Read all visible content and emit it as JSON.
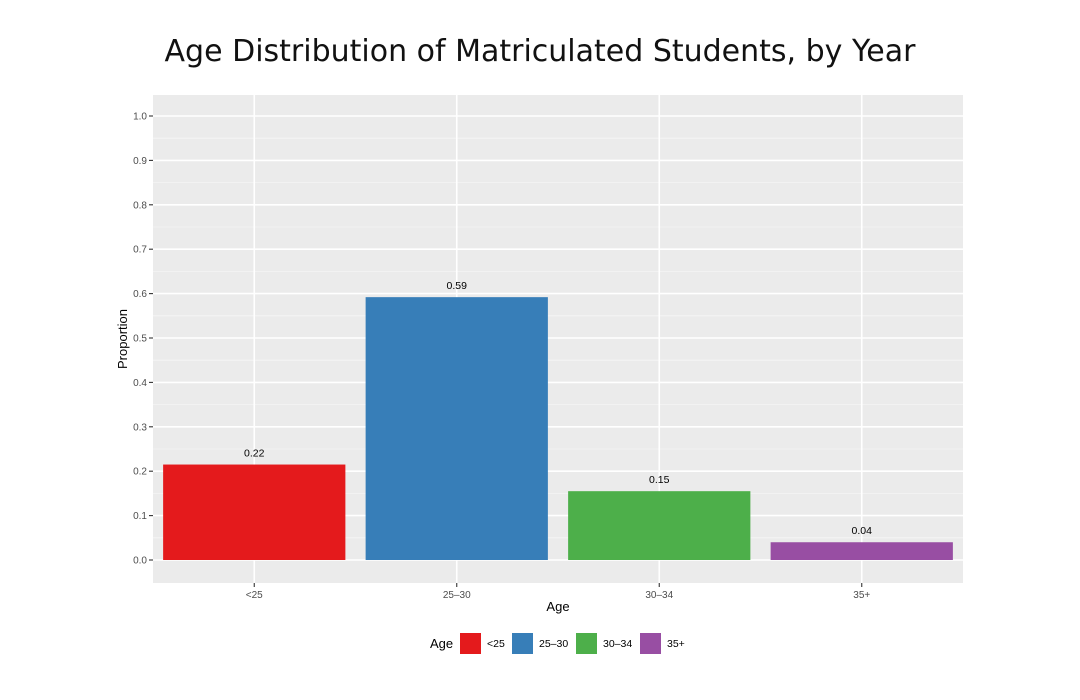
{
  "chart_data": {
    "type": "bar",
    "title": "Age Distribution of Matriculated Students, by Year",
    "xlabel": "Age",
    "ylabel": "Proportion",
    "categories": [
      "<25",
      "25–30",
      "30–34",
      "35+"
    ],
    "values": [
      0.215,
      0.592,
      0.155,
      0.04
    ],
    "data_labels": [
      "0.22",
      "0.59",
      "0.15",
      "0.04"
    ],
    "colors": [
      "#E41A1C",
      "#377EB8",
      "#4DAF4A",
      "#984EA3"
    ],
    "ylim": [
      -0.05,
      1.05
    ],
    "yticks": [
      0.0,
      0.1,
      0.2,
      0.3,
      0.4,
      0.5,
      0.6,
      0.7,
      0.8,
      0.9,
      1.0
    ],
    "ytick_labels": [
      "0.0",
      "0.1",
      "0.2",
      "0.3",
      "0.4",
      "0.5",
      "0.6",
      "0.7",
      "0.8",
      "0.9",
      "1.0"
    ],
    "grid": true,
    "legend": {
      "title": "Age",
      "position": "bottom",
      "entries": [
        "<25",
        "25–30",
        "30–34",
        "35+"
      ]
    }
  }
}
